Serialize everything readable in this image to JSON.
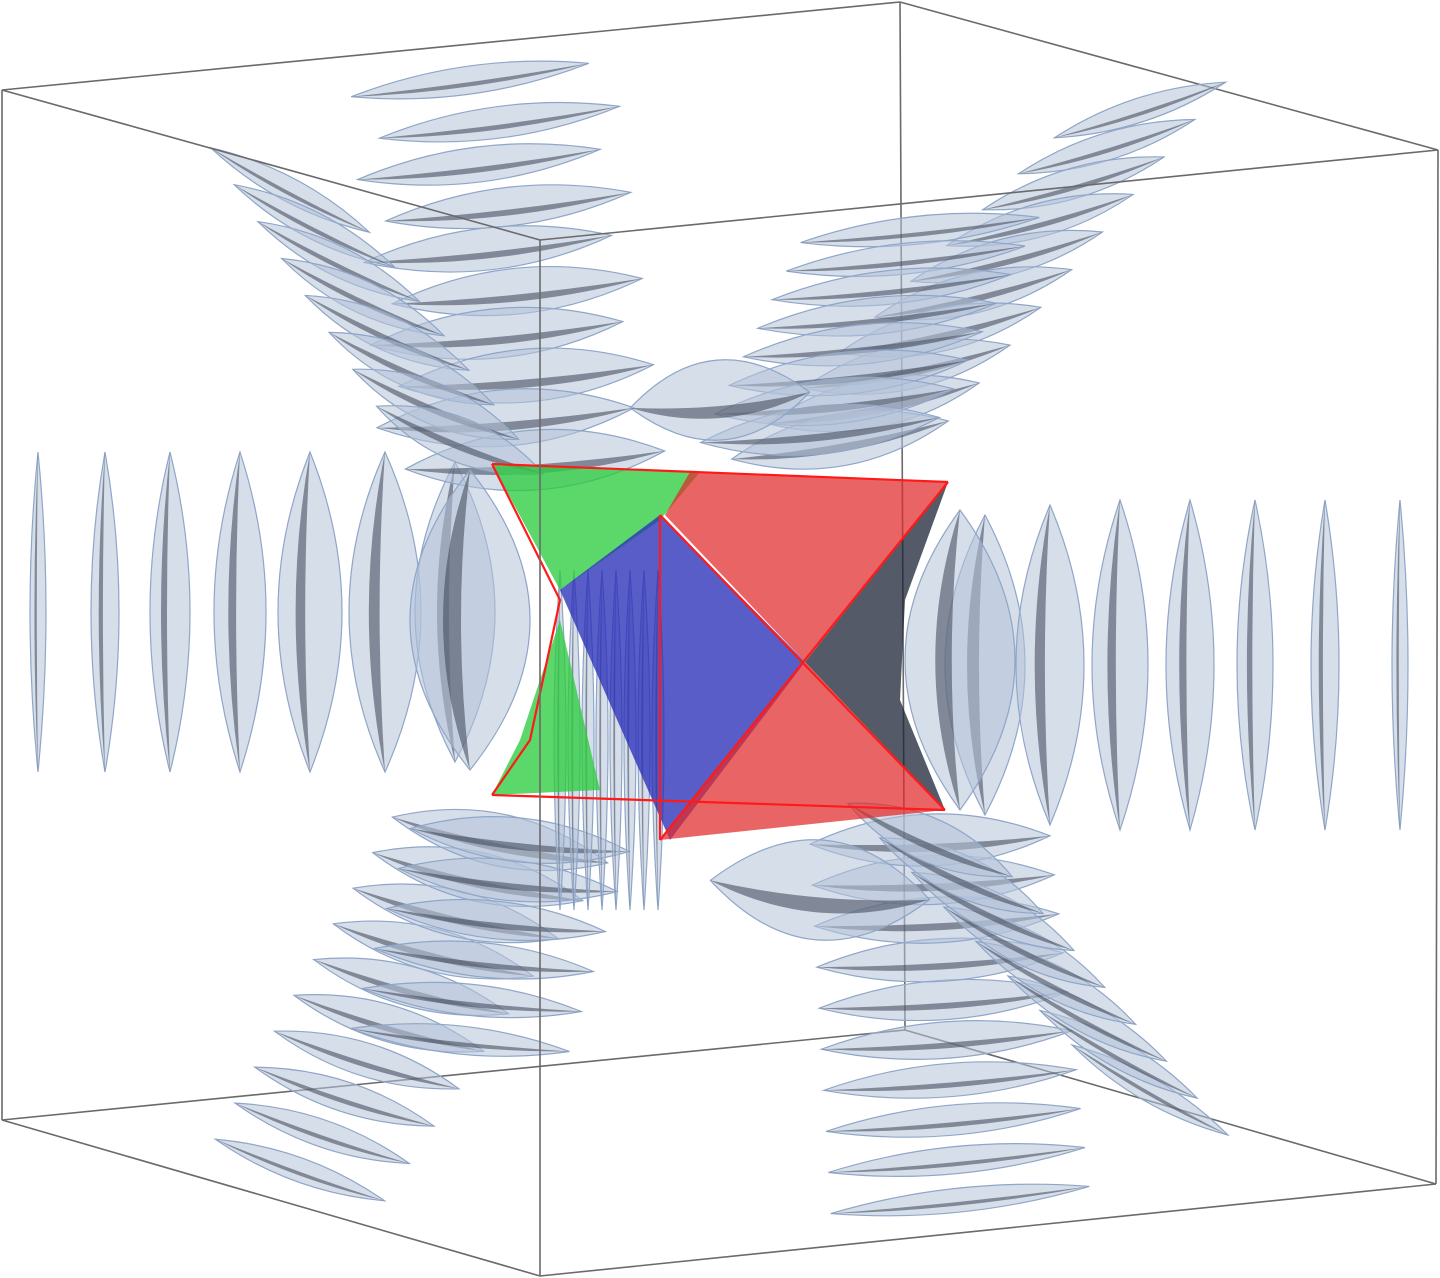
{
  "figure": {
    "description_colors": {
      "background": "#ffffff",
      "box_edge": "#6a6a6a",
      "lens_fill": "#b4c3d9",
      "lens_stroke": "#8fa6c8",
      "core_green": "#2ecc40",
      "core_red": "#e02a2a",
      "core_blue": "#2a2fb8",
      "core_edge": "#ff1a1a"
    },
    "icons": [
      "bounding-box",
      "lens-slices",
      "central-star-core"
    ]
  }
}
